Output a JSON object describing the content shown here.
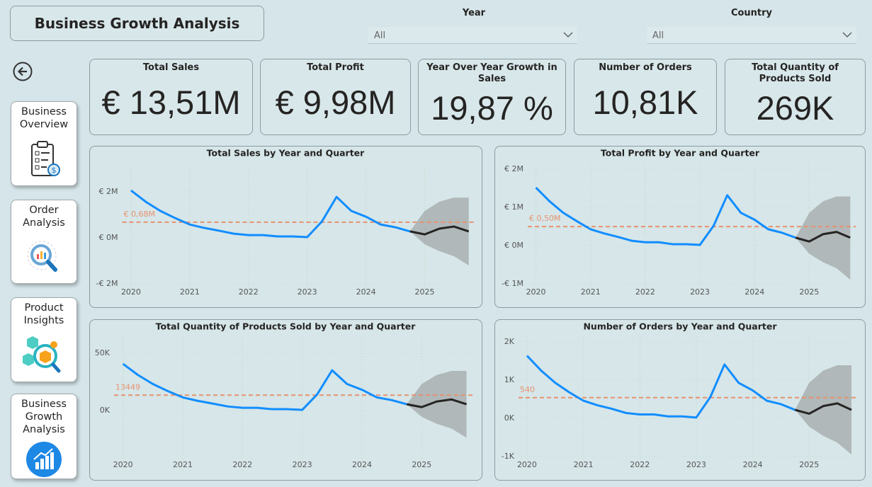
{
  "header": {
    "title": "Business Growth Analysis"
  },
  "filters": [
    {
      "label": "Year",
      "value": "All"
    },
    {
      "label": "Country",
      "value": "All"
    }
  ],
  "navigation": [
    {
      "label": "Business Overview"
    },
    {
      "label": "Order Analysis"
    },
    {
      "label": "Product Insights"
    },
    {
      "label": "Business Growth Analysis"
    }
  ],
  "kpis": [
    {
      "title": "Total Sales",
      "value": "€ 13,51M"
    },
    {
      "title": "Total Profit",
      "value": "€ 9,98M"
    },
    {
      "title": "Year Over Year Growth in Sales",
      "value": "19,87 %"
    },
    {
      "title": "Number of Orders",
      "value": "10,81K"
    },
    {
      "title": "Total Quantity of Products Sold",
      "value": "269K"
    }
  ],
  "chart_data": [
    {
      "type": "line",
      "title": "Total Sales by Year and Quarter",
      "x": [
        2020,
        2020.25,
        2020.5,
        2020.75,
        2021,
        2021.25,
        2021.5,
        2021.75,
        2022,
        2022.25,
        2022.5,
        2022.75,
        2023,
        2023.25,
        2023.5,
        2023.75,
        2024,
        2024.25,
        2024.5,
        2024.75,
        2025,
        2025.25,
        2025.5,
        2025.75
      ],
      "xlim": [
        2019.85,
        2025.85
      ],
      "xticks": [
        2020,
        2021,
        2022,
        2023,
        2024,
        2025
      ],
      "ylim": [
        -2400000,
        3000000
      ],
      "yticks": [
        {
          "value": -2000000,
          "label": "-€ 2M"
        },
        {
          "value": 0,
          "label": "€ 0M"
        },
        {
          "value": 2000000,
          "label": "€ 2M"
        }
      ],
      "grid": true,
      "series": [
        {
          "color": "#118dff",
          "values": [
            2060000,
            1570000,
            1170000,
            860000,
            580000,
            430000,
            310000,
            180000,
            120000,
            120000,
            60000,
            60000,
            30000,
            710000,
            1780000,
            1170000,
            920000,
            580000,
            460000,
            280000,
            null,
            null,
            null,
            null
          ]
        },
        {
          "color": "#252423",
          "values": [
            null,
            null,
            null,
            null,
            null,
            null,
            null,
            null,
            null,
            null,
            null,
            null,
            null,
            null,
            null,
            null,
            null,
            null,
            null,
            280000,
            150000,
            400000,
            490000,
            280000
          ]
        }
      ],
      "forecast_band": {
        "color": "#a3a8a8",
        "upper": [
          null,
          null,
          null,
          null,
          null,
          null,
          null,
          null,
          null,
          null,
          null,
          null,
          null,
          null,
          null,
          null,
          null,
          null,
          null,
          280000,
          1170000,
          1570000,
          1750000,
          1750000
        ],
        "lower": [
          null,
          null,
          null,
          null,
          null,
          null,
          null,
          null,
          null,
          null,
          null,
          null,
          null,
          null,
          null,
          null,
          null,
          null,
          null,
          280000,
          -280000,
          -580000,
          -800000,
          -1200000
        ]
      },
      "reference_line": {
        "value": 680000,
        "label": "€ 0,68M",
        "color": "#e8926e"
      }
    },
    {
      "type": "line",
      "title": "Total Profit by Year and Quarter",
      "x": [
        2020,
        2020.25,
        2020.5,
        2020.75,
        2021,
        2021.25,
        2021.5,
        2021.75,
        2022,
        2022.25,
        2022.5,
        2022.75,
        2023,
        2023.25,
        2023.5,
        2023.75,
        2024,
        2024.25,
        2024.5,
        2024.75,
        2025,
        2025.25,
        2025.5,
        2025.75
      ],
      "xlim": [
        2019.85,
        2025.85
      ],
      "xticks": [
        2020,
        2021,
        2022,
        2023,
        2024,
        2025
      ],
      "ylim": [
        -1350000,
        2150000
      ],
      "yticks": [
        {
          "value": -1000000,
          "label": "-€ 1M"
        },
        {
          "value": 0,
          "label": "€ 0M"
        },
        {
          "value": 1000000,
          "label": "€ 1M"
        },
        {
          "value": 2000000,
          "label": "€ 2M"
        }
      ],
      "grid": true,
      "series": [
        {
          "color": "#118dff",
          "values": [
            1520000,
            1160000,
            860000,
            640000,
            430000,
            320000,
            230000,
            130000,
            90000,
            90000,
            40000,
            40000,
            20000,
            520000,
            1320000,
            860000,
            680000,
            430000,
            340000,
            210000,
            null,
            null,
            null,
            null
          ]
        },
        {
          "color": "#252423",
          "values": [
            null,
            null,
            null,
            null,
            null,
            null,
            null,
            null,
            null,
            null,
            null,
            null,
            null,
            null,
            null,
            null,
            null,
            null,
            null,
            210000,
            110000,
            300000,
            360000,
            210000
          ]
        }
      ],
      "forecast_band": {
        "color": "#a3a8a8",
        "upper": [
          null,
          null,
          null,
          null,
          null,
          null,
          null,
          null,
          null,
          null,
          null,
          null,
          null,
          null,
          null,
          null,
          null,
          null,
          null,
          210000,
          860000,
          1160000,
          1290000,
          1290000
        ],
        "lower": [
          null,
          null,
          null,
          null,
          null,
          null,
          null,
          null,
          null,
          null,
          null,
          null,
          null,
          null,
          null,
          null,
          null,
          null,
          null,
          210000,
          -210000,
          -430000,
          -590000,
          -890000
        ]
      },
      "reference_line": {
        "value": 500000,
        "label": "€ 0,50M",
        "color": "#e8926e"
      }
    },
    {
      "type": "line",
      "title": "Total Quantity of Products Sold by Year and Quarter",
      "x": [
        2020,
        2020.25,
        2020.5,
        2020.75,
        2021,
        2021.25,
        2021.5,
        2021.75,
        2022,
        2022.25,
        2022.5,
        2022.75,
        2023,
        2023.25,
        2023.5,
        2023.75,
        2024,
        2024.25,
        2024.5,
        2024.75,
        2025,
        2025.25,
        2025.5,
        2025.75
      ],
      "xlim": [
        2019.85,
        2025.85
      ],
      "xticks": [
        2020,
        2021,
        2022,
        2023,
        2024,
        2025
      ],
      "ylim": [
        -52000,
        65000
      ],
      "yticks": [
        {
          "value": 0,
          "label": "0K"
        },
        {
          "value": 50000,
          "label": "50K"
        }
      ],
      "grid": true,
      "series": [
        {
          "color": "#118dff",
          "values": [
            40800,
            31100,
            23200,
            17000,
            11500,
            8500,
            6100,
            3600,
            2400,
            2400,
            1200,
            1200,
            600,
            14100,
            35200,
            23200,
            18200,
            11500,
            9100,
            5500,
            null,
            null,
            null,
            null
          ]
        },
        {
          "color": "#252423",
          "values": [
            null,
            null,
            null,
            null,
            null,
            null,
            null,
            null,
            null,
            null,
            null,
            null,
            null,
            null,
            null,
            null,
            null,
            null,
            null,
            5500,
            3000,
            7900,
            9700,
            5500
          ]
        }
      ],
      "forecast_band": {
        "color": "#a3a8a8",
        "upper": [
          null,
          null,
          null,
          null,
          null,
          null,
          null,
          null,
          null,
          null,
          null,
          null,
          null,
          null,
          null,
          null,
          null,
          null,
          null,
          5500,
          23200,
          31100,
          34700,
          34700
        ],
        "lower": [
          null,
          null,
          null,
          null,
          null,
          null,
          null,
          null,
          null,
          null,
          null,
          null,
          null,
          null,
          null,
          null,
          null,
          null,
          null,
          5500,
          -5500,
          -11500,
          -15800,
          -23800
        ]
      },
      "reference_line": {
        "value": 13449,
        "color": "#e8926e"
      }
    },
    {
      "type": "line",
      "title": "Number of Orders by Year and Quarter",
      "x": [
        2020,
        2020.25,
        2020.5,
        2020.75,
        2021,
        2021.25,
        2021.5,
        2021.75,
        2022,
        2022.25,
        2022.5,
        2022.75,
        2023,
        2023.25,
        2023.5,
        2023.75,
        2024,
        2024.25,
        2024.5,
        2024.75,
        2025,
        2025.25,
        2025.5,
        2025.75
      ],
      "xlim": [
        2019.85,
        2025.85
      ],
      "xticks": [
        2020,
        2021,
        2022,
        2023,
        2024,
        2025
      ],
      "ylim": [
        -1300,
        2150
      ],
      "yticks": [
        {
          "value": -1000,
          "label": "-1K"
        },
        {
          "value": 0,
          "label": "0K"
        },
        {
          "value": 1000,
          "label": "1K"
        },
        {
          "value": 2000,
          "label": "2K"
        }
      ],
      "grid": true,
      "series": [
        {
          "color": "#118dff",
          "values": [
            1640,
            1250,
            930,
            680,
            460,
            340,
            250,
            140,
            100,
            100,
            50,
            50,
            20,
            560,
            1410,
            930,
            730,
            460,
            370,
            220,
            null,
            null,
            null,
            null
          ]
        },
        {
          "color": "#252423",
          "values": [
            null,
            null,
            null,
            null,
            null,
            null,
            null,
            null,
            null,
            null,
            null,
            null,
            null,
            null,
            null,
            null,
            null,
            null,
            null,
            220,
            120,
            320,
            390,
            220
          ]
        }
      ],
      "forecast_band": {
        "color": "#a3a8a8",
        "upper": [
          null,
          null,
          null,
          null,
          null,
          null,
          null,
          null,
          null,
          null,
          null,
          null,
          null,
          null,
          null,
          null,
          null,
          null,
          null,
          220,
          930,
          1250,
          1390,
          1390
        ],
        "lower": [
          null,
          null,
          null,
          null,
          null,
          null,
          null,
          null,
          null,
          null,
          null,
          null,
          null,
          null,
          null,
          null,
          null,
          null,
          null,
          220,
          -220,
          -460,
          -640,
          -950
        ]
      },
      "reference_line": {
        "value": 540,
        "color": "#e8926e"
      }
    }
  ]
}
